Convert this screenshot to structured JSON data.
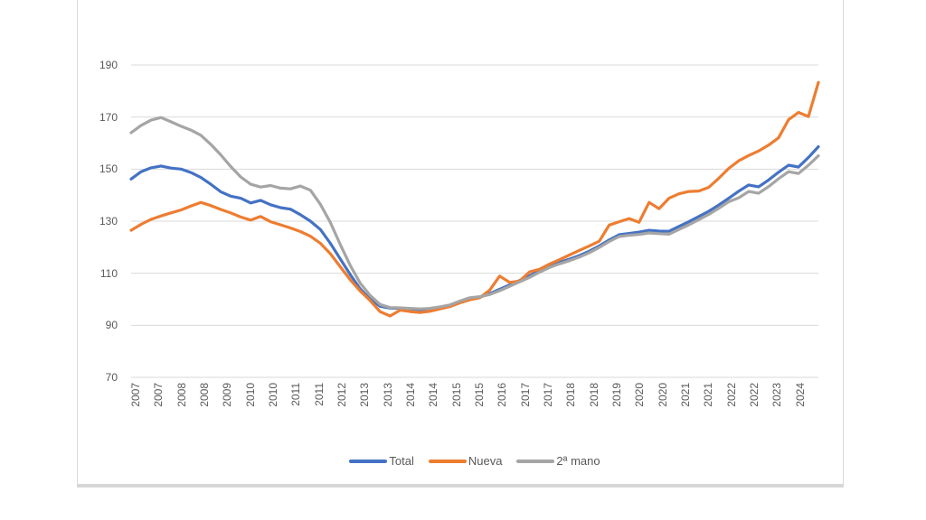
{
  "chart_data": {
    "type": "line",
    "title": "",
    "xlabel": "",
    "ylabel": "",
    "y_ticks": [
      190,
      170,
      150,
      130,
      110,
      90,
      70
    ],
    "ylim": [
      70,
      196
    ],
    "grid": "horizontal-only",
    "gridline_color": "#d9d9d9",
    "axis_text_color": "#595959",
    "legend_position": "bottom-center",
    "x_tick_labels": [
      "2007",
      "2007",
      "2008",
      "2008",
      "2009",
      "2010",
      "2010",
      "2011",
      "2011",
      "2012",
      "2013",
      "2013",
      "2014",
      "2014",
      "2015",
      "2015",
      "2016",
      "2017",
      "2017",
      "2018",
      "2018",
      "2019",
      "2020",
      "2020",
      "2021",
      "2021",
      "2022",
      "2022",
      "2023",
      "2024"
    ],
    "x_period": "quarterly 2007 - 2024",
    "series": [
      {
        "name": "Total",
        "color": "#4472C4",
        "values": [
          146.2,
          149.0,
          150.5,
          151.2,
          150.4,
          150.0,
          148.7,
          146.8,
          144.2,
          141.3,
          139.6,
          138.8,
          137.0,
          138.0,
          136.3,
          135.2,
          134.6,
          132.5,
          130.0,
          126.8,
          121.5,
          115.5,
          109.5,
          104.0,
          100.0,
          97.3,
          96.6,
          96.5,
          96.3,
          96.0,
          96.2,
          96.8,
          97.5,
          99.0,
          100.3,
          100.8,
          102.2,
          103.8,
          105.5,
          107.2,
          109.0,
          111.0,
          112.8,
          114.2,
          115.4,
          116.8,
          118.5,
          120.5,
          122.8,
          124.8,
          125.3,
          125.8,
          126.5,
          126.2,
          126.1,
          128.0,
          129.8,
          131.8,
          133.8,
          136.2,
          138.8,
          141.5,
          143.9,
          143.2,
          145.8,
          148.8,
          151.5,
          150.8,
          154.5,
          158.6
        ]
      },
      {
        "name": "Nueva",
        "color": "#ED7D31",
        "values": [
          126.5,
          128.8,
          130.7,
          132.0,
          133.2,
          134.3,
          135.8,
          137.2,
          136.0,
          134.5,
          133.2,
          131.6,
          130.4,
          131.8,
          129.8,
          128.6,
          127.4,
          126.0,
          124.2,
          121.5,
          117.5,
          112.5,
          107.5,
          103.2,
          99.5,
          95.2,
          93.6,
          95.8,
          95.3,
          94.9,
          95.4,
          96.3,
          97.2,
          98.6,
          99.8,
          100.6,
          103.5,
          108.9,
          106.5,
          107.0,
          110.5,
          111.5,
          113.5,
          115.2,
          117.0,
          118.8,
          120.5,
          122.3,
          128.5,
          129.8,
          131.0,
          129.6,
          137.2,
          134.8,
          138.8,
          140.5,
          141.4,
          141.6,
          143.0,
          146.5,
          150.3,
          153.2,
          155.2,
          157.0,
          159.2,
          162.0,
          169.0,
          171.8,
          170.2,
          183.3
        ]
      },
      {
        "name": "2ª mano",
        "color": "#A5A5A5",
        "values": [
          164.0,
          166.8,
          168.8,
          169.8,
          168.2,
          166.5,
          165.0,
          163.0,
          159.5,
          155.5,
          151.0,
          147.0,
          144.2,
          143.1,
          143.7,
          142.7,
          142.4,
          143.5,
          141.9,
          136.5,
          129.5,
          121.0,
          113.0,
          106.2,
          101.5,
          98.0,
          96.8,
          96.7,
          96.5,
          96.3,
          96.5,
          97.1,
          97.8,
          99.3,
          100.6,
          101.0,
          101.8,
          103.3,
          105.0,
          106.7,
          108.4,
          110.4,
          112.2,
          113.6,
          114.8,
          116.2,
          117.9,
          119.9,
          122.2,
          124.1,
          124.6,
          124.9,
          125.5,
          125.2,
          125.0,
          126.8,
          128.6,
          130.6,
          132.6,
          135.0,
          137.5,
          139.0,
          141.4,
          140.7,
          143.3,
          146.3,
          149.0,
          148.3,
          151.5,
          155.1
        ]
      }
    ]
  },
  "legend": {
    "items": [
      {
        "label": "Total",
        "color": "#4472C4"
      },
      {
        "label": "Nueva",
        "color": "#ED7D31"
      },
      {
        "label": "2ª mano",
        "color": "#A5A5A5"
      }
    ]
  },
  "frame": {
    "border_color": "#d9d9d9"
  }
}
